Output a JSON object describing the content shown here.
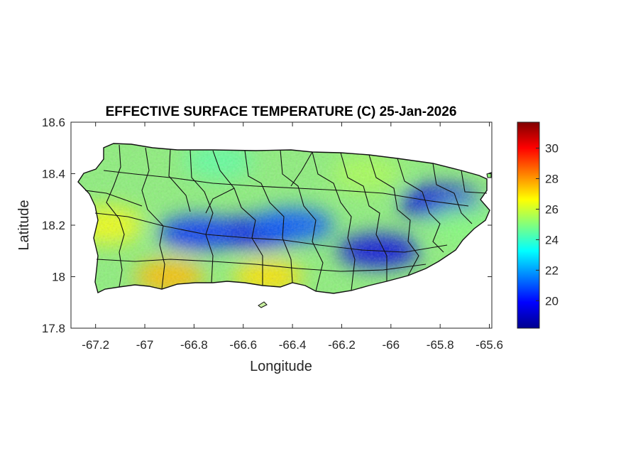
{
  "chart_data": {
    "type": "heatmap",
    "title": "EFFECTIVE SURFACE TEMPERATURE (C) 25-Jan-2026",
    "xlabel": "Longitude",
    "ylabel": "Latitude",
    "xlim": [
      -67.3,
      -65.59
    ],
    "ylim": [
      17.8,
      18.6
    ],
    "xticks": [
      -67.2,
      -67,
      -66.8,
      -66.6,
      -66.4,
      -66.2,
      -66,
      -65.8,
      -65.6
    ],
    "xtick_labels": [
      "-67.2",
      "-67",
      "-66.8",
      "-66.6",
      "-66.4",
      "-66.2",
      "-66",
      "-65.8",
      "-65.6"
    ],
    "yticks": [
      17.8,
      18,
      18.2,
      18.4,
      18.6
    ],
    "ytick_labels": [
      "17.8",
      "18",
      "18.2",
      "18.4",
      "18.6"
    ],
    "colorbar": {
      "colormap": "jet",
      "clim": [
        18.2,
        31.7
      ],
      "ticks": [
        20,
        22,
        24,
        26,
        28,
        30
      ],
      "tick_labels": [
        "20",
        "22",
        "24",
        "26",
        "28",
        "30"
      ],
      "placement": "right"
    },
    "field_description_points": [
      {
        "lon": -66.55,
        "lat": 18.17,
        "value": 19.5
      },
      {
        "lon": -66.78,
        "lat": 18.17,
        "value": 20.5
      },
      {
        "lon": -66.4,
        "lat": 18.2,
        "value": 21
      },
      {
        "lon": -66.05,
        "lat": 18.1,
        "value": 19.5
      },
      {
        "lon": -65.8,
        "lat": 18.29,
        "value": 19.5
      },
      {
        "lon": -67.15,
        "lat": 18.2,
        "value": 26.5
      },
      {
        "lon": -66.9,
        "lat": 18.0,
        "value": 27.5
      },
      {
        "lon": -66.5,
        "lat": 18.0,
        "value": 27
      },
      {
        "lon": -66.7,
        "lat": 18.45,
        "value": 24.5
      },
      {
        "lon": -66.1,
        "lat": 18.4,
        "value": 25.5
      },
      {
        "lon": -65.7,
        "lat": 18.2,
        "value": 25
      }
    ],
    "grid": false
  }
}
